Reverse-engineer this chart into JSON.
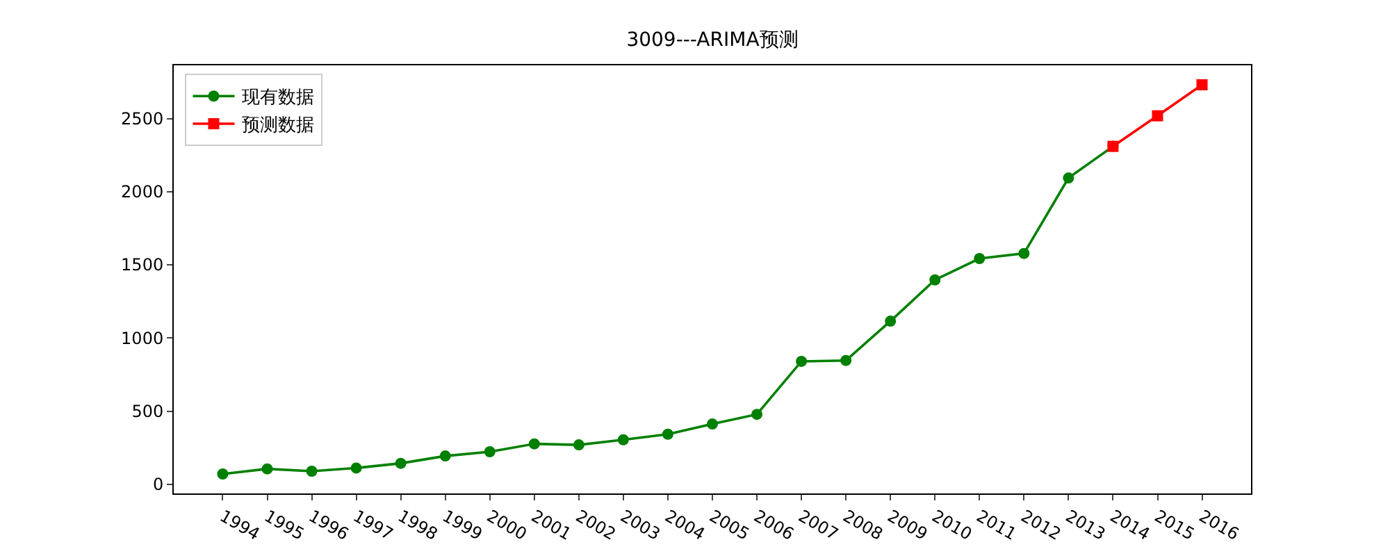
{
  "chart_data": {
    "type": "line",
    "title": "3009---ARIMA预测",
    "categories": [
      "1994",
      "1995",
      "1996",
      "1997",
      "1998",
      "1999",
      "2000",
      "2001",
      "2002",
      "2003",
      "2004",
      "2005",
      "2006",
      "2007",
      "2008",
      "2009",
      "2010",
      "2011",
      "2012",
      "2013",
      "2014",
      "2015",
      "2016"
    ],
    "series": [
      {
        "name": "现有数据",
        "color": "#008000",
        "marker": "circle",
        "values": [
          70,
          105,
          89,
          111,
          143,
          193,
          222,
          276,
          269,
          304,
          342,
          412,
          478,
          840,
          846,
          1115,
          1397,
          1543,
          1578,
          2094,
          2310,
          null,
          null
        ]
      },
      {
        "name": "预测数据",
        "color": "#ff0000",
        "marker": "square",
        "values": [
          null,
          null,
          null,
          null,
          null,
          null,
          null,
          null,
          null,
          null,
          null,
          null,
          null,
          null,
          null,
          null,
          null,
          null,
          null,
          null,
          2310,
          2519,
          2731
        ]
      }
    ],
    "ylim": [
      -63,
      2864
    ],
    "yticks": [
      0,
      500,
      1000,
      1500,
      2000,
      2500
    ],
    "grid": false,
    "legend": "top left",
    "line_style": "solid"
  }
}
